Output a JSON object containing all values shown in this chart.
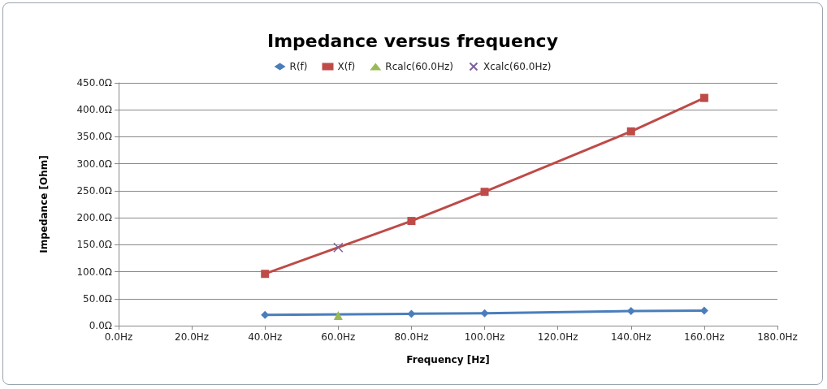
{
  "chart_data": {
    "type": "line",
    "title": "Impedance versus frequency",
    "xlabel": "Frequency [Hz]",
    "ylabel": "Impedance [Ohm]",
    "xlim": [
      0,
      180
    ],
    "xticks": [
      {
        "value": 0,
        "label": "0.0Hz"
      },
      {
        "value": 20,
        "label": "20.0Hz"
      },
      {
        "value": 40,
        "label": "40.0Hz"
      },
      {
        "value": 60,
        "label": "60.0Hz"
      },
      {
        "value": 80,
        "label": "80.0Hz"
      },
      {
        "value": 100,
        "label": "100.0Hz"
      },
      {
        "value": 120,
        "label": "120.0Hz"
      },
      {
        "value": 140,
        "label": "140.0Hz"
      },
      {
        "value": 160,
        "label": "160.0Hz"
      },
      {
        "value": 180,
        "label": "180.0Hz"
      }
    ],
    "ylim": [
      0,
      450
    ],
    "yticks": [
      {
        "value": 0,
        "label": "0.0Ω"
      },
      {
        "value": 50,
        "label": "50.0Ω"
      },
      {
        "value": 100,
        "label": "100.0Ω"
      },
      {
        "value": 150,
        "label": "150.0Ω"
      },
      {
        "value": 200,
        "label": "200.0Ω"
      },
      {
        "value": 250,
        "label": "250.0Ω"
      },
      {
        "value": 300,
        "label": "300.0Ω"
      },
      {
        "value": 350,
        "label": "350.0Ω"
      },
      {
        "value": 400,
        "label": "400.0Ω"
      },
      {
        "value": 450,
        "label": "450.0Ω"
      }
    ],
    "grid": "y",
    "legend": "top",
    "line_style": "solid",
    "series": [
      {
        "name": "R(f)",
        "color": "#4a7ebb",
        "marker": "diamond",
        "x": [
          40,
          80,
          100,
          140,
          160
        ],
        "values": [
          20,
          22,
          23,
          27,
          28
        ]
      },
      {
        "name": "X(f)",
        "color": "#be4b48",
        "marker": "square",
        "x": [
          40,
          80,
          100,
          140,
          160
        ],
        "values": [
          96,
          194,
          248,
          360,
          422
        ]
      },
      {
        "name": "Rcalc(60.0Hz)",
        "color": "#98b954",
        "marker": "triangle",
        "x": [
          60
        ],
        "values": [
          19
        ]
      },
      {
        "name": "Xcalc(60.0Hz)",
        "color": "#7d60a0",
        "marker": "cross",
        "x": [
          60
        ],
        "values": [
          145
        ]
      }
    ]
  }
}
